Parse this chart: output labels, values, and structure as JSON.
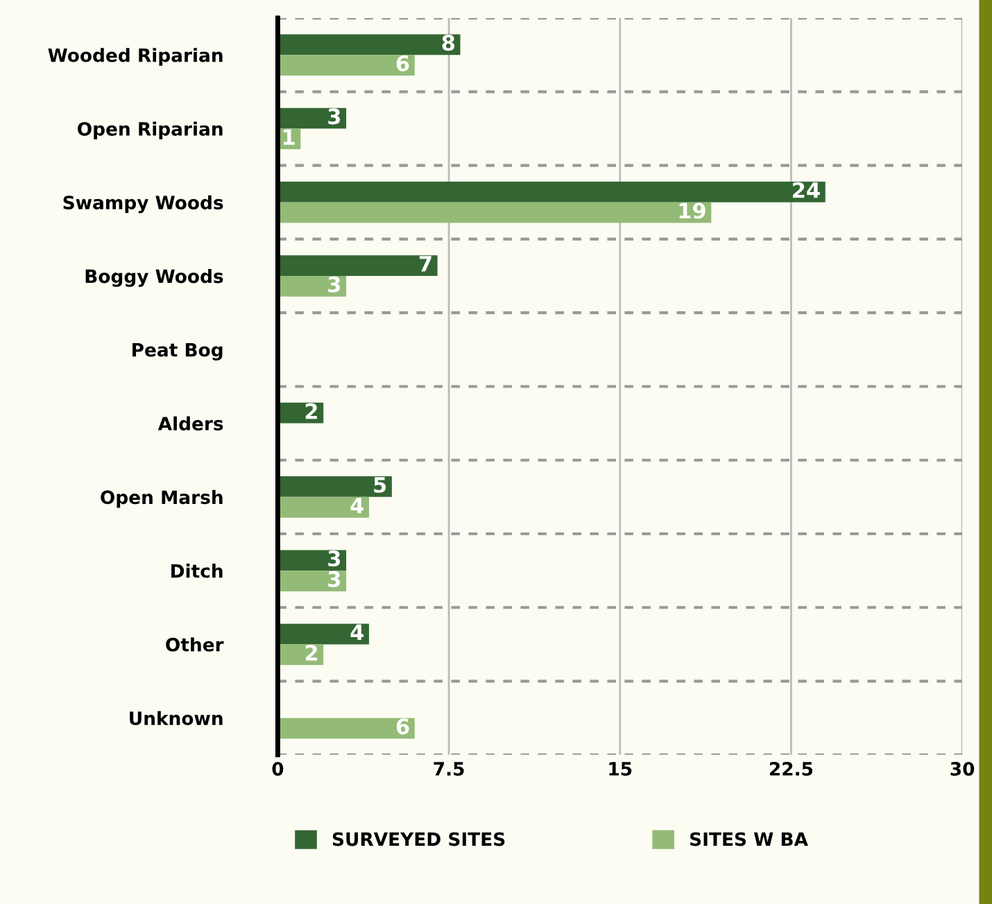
{
  "chart_data": {
    "type": "bar",
    "orientation": "horizontal",
    "categories": [
      "Wooded Riparian",
      "Open Riparian",
      "Swampy Woods",
      "Boggy Woods",
      "Peat Bog",
      "Alders",
      "Open Marsh",
      "Ditch",
      "Other",
      "Unknown"
    ],
    "series": [
      {
        "name": "SURVEYED SITES",
        "color": "#336633",
        "values": [
          8,
          3,
          24,
          7,
          0,
          2,
          5,
          3,
          4,
          0
        ],
        "value_labels": [
          "8",
          "3",
          "24",
          "7",
          null,
          "2",
          "5",
          "3",
          "4",
          null
        ]
      },
      {
        "name": "SITES W BA",
        "color": "#93bb77",
        "values": [
          6,
          1,
          19,
          3,
          0,
          0,
          4,
          3,
          2,
          6
        ],
        "value_labels": [
          "6",
          "1",
          "19",
          "3",
          null,
          null,
          "4",
          "3",
          "2",
          "6"
        ]
      }
    ],
    "xlim": [
      0,
      30
    ],
    "xticks": [
      0,
      7.5,
      15,
      22.5,
      30
    ],
    "grid": true,
    "legend": "bottom"
  }
}
